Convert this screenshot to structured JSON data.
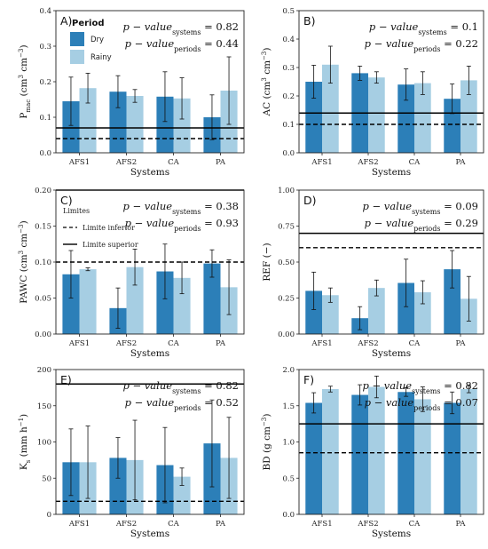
{
  "colors": {
    "dry": "#2c7fb8",
    "rainy": "#a6cee3",
    "frame": "#222222",
    "error": "#111111"
  },
  "legend_period": {
    "title": "Period",
    "dry_label": "Dry",
    "rainy_label": "Rainy"
  },
  "legend_limits": {
    "title": "Limites",
    "inferior_label": "Limite inferior",
    "superior_label": "Limite superior"
  },
  "chart_data": [
    {
      "panel": "A)",
      "type": "bar",
      "categories": [
        "AFS1",
        "AFS2",
        "CA",
        "PA"
      ],
      "xlabel": "Systems",
      "ylabel": "P",
      "ylabel_sub": "mac",
      "ylabel_unit": "(cm",
      "ylim": [
        0,
        0.4
      ],
      "yticks": [
        0.0,
        0.1,
        0.2,
        0.3,
        0.4
      ],
      "ytick_labels": [
        "0.0",
        "0.1",
        "0.2",
        "0.3",
        "0.4"
      ],
      "series": [
        {
          "name": "Dry",
          "values": [
            0.145,
            0.172,
            0.158,
            0.1
          ],
          "errors": [
            0.068,
            0.045,
            0.07,
            0.063
          ]
        },
        {
          "name": "Rainy",
          "values": [
            0.182,
            0.16,
            0.153,
            0.175
          ],
          "errors": [
            0.042,
            0.018,
            0.058,
            0.095
          ]
        }
      ],
      "limit_inferior": 0.04,
      "limit_superior": 0.07,
      "pv_systems": "0.82",
      "pv_periods": "0.44"
    },
    {
      "panel": "B)",
      "type": "bar",
      "categories": [
        "AFS1",
        "AFS2",
        "CA",
        "PA"
      ],
      "xlabel": "Systems",
      "ylabel": "AC",
      "ylim": [
        0,
        0.5
      ],
      "yticks": [
        0.0,
        0.1,
        0.2,
        0.3,
        0.4,
        0.5
      ],
      "ytick_labels": [
        "0.0",
        "0.1",
        "0.2",
        "0.3",
        "0.4",
        "0.5"
      ],
      "series": [
        {
          "name": "Dry",
          "values": [
            0.25,
            0.28,
            0.24,
            0.19
          ],
          "errors": [
            0.058,
            0.025,
            0.055,
            0.052
          ]
        },
        {
          "name": "Rainy",
          "values": [
            0.31,
            0.265,
            0.245,
            0.255
          ],
          "errors": [
            0.065,
            0.02,
            0.04,
            0.05
          ]
        }
      ],
      "limit_inferior": 0.1,
      "limit_superior": 0.14,
      "pv_systems": "0.1",
      "pv_periods": "0.22"
    },
    {
      "panel": "C)",
      "type": "bar",
      "categories": [
        "AFS1",
        "AFS2",
        "CA",
        "PA"
      ],
      "xlabel": "Systems",
      "ylabel": "PAWC",
      "ylim": [
        0,
        0.2
      ],
      "yticks": [
        0.0,
        0.05,
        0.1,
        0.15,
        0.2
      ],
      "ytick_labels": [
        "0.00",
        "0.05",
        "0.10",
        "0.15",
        "0.20"
      ],
      "series": [
        {
          "name": "Dry",
          "values": [
            0.083,
            0.036,
            0.087,
            0.098
          ],
          "errors": [
            0.033,
            0.028,
            0.038,
            0.019
          ]
        },
        {
          "name": "Rainy",
          "values": [
            0.09,
            0.093,
            0.078,
            0.065
          ],
          "errors": [
            0.002,
            0.025,
            0.022,
            0.038
          ]
        }
      ],
      "limit_inferior": 0.1,
      "limit_superior": 0.2,
      "pv_systems": "0.38",
      "pv_periods": "0.93"
    },
    {
      "panel": "D)",
      "type": "bar",
      "categories": [
        "AFS1",
        "AFS2",
        "CA",
        "PA"
      ],
      "xlabel": "Systems",
      "ylabel": "REF",
      "ylim": [
        0,
        1.0
      ],
      "yticks": [
        0.0,
        0.25,
        0.5,
        0.75,
        1.0
      ],
      "ytick_labels": [
        "0.00",
        "0.25",
        "0.50",
        "0.75",
        "1.00"
      ],
      "series": [
        {
          "name": "Dry",
          "values": [
            0.3,
            0.11,
            0.355,
            0.45
          ],
          "errors": [
            0.13,
            0.08,
            0.165,
            0.13
          ]
        },
        {
          "name": "Rainy",
          "values": [
            0.27,
            0.32,
            0.29,
            0.245
          ],
          "errors": [
            0.05,
            0.055,
            0.08,
            0.155
          ]
        }
      ],
      "limit_inferior": 0.6,
      "limit_superior": 0.7,
      "pv_systems": "0.09",
      "pv_periods": "0.29"
    },
    {
      "panel": "E)",
      "type": "bar",
      "categories": [
        "AFS1",
        "AFS2",
        "CA",
        "PA"
      ],
      "xlabel": "Systems",
      "ylabel": "K",
      "ylim": [
        0,
        200
      ],
      "yticks": [
        0,
        50,
        100,
        150,
        200
      ],
      "ytick_labels": [
        "0",
        "50",
        "100",
        "150",
        "200"
      ],
      "series": [
        {
          "name": "Dry",
          "values": [
            72,
            78,
            68,
            98
          ],
          "errors": [
            46,
            28,
            52,
            60
          ]
        },
        {
          "name": "Rainy",
          "values": [
            72,
            75,
            52,
            78
          ],
          "errors": [
            50,
            55,
            12,
            56
          ]
        }
      ],
      "limit_inferior": 18,
      "limit_superior": 180,
      "pv_systems": "0.82",
      "pv_periods": "0.52"
    },
    {
      "panel": "F)",
      "type": "bar",
      "categories": [
        "AFS1",
        "AFS2",
        "CA",
        "PA"
      ],
      "xlabel": "Systems",
      "ylabel": "BD",
      "ylim": [
        0,
        2.0
      ],
      "yticks": [
        0.0,
        0.5,
        1.0,
        1.5,
        2.0
      ],
      "ytick_labels": [
        "0.0",
        "0.5",
        "1.0",
        "1.5",
        "2.0"
      ],
      "series": [
        {
          "name": "Dry",
          "values": [
            1.54,
            1.65,
            1.69,
            1.54
          ],
          "errors": [
            0.14,
            0.14,
            0.06,
            0.15
          ]
        },
        {
          "name": "Rainy",
          "values": [
            1.73,
            1.76,
            1.59,
            1.73
          ],
          "errors": [
            0.04,
            0.15,
            0.17,
            0.05
          ]
        }
      ],
      "limit_inferior": 0.85,
      "limit_superior": 1.25,
      "pv_systems": "0.82",
      "pv_periods": "0.07"
    }
  ]
}
